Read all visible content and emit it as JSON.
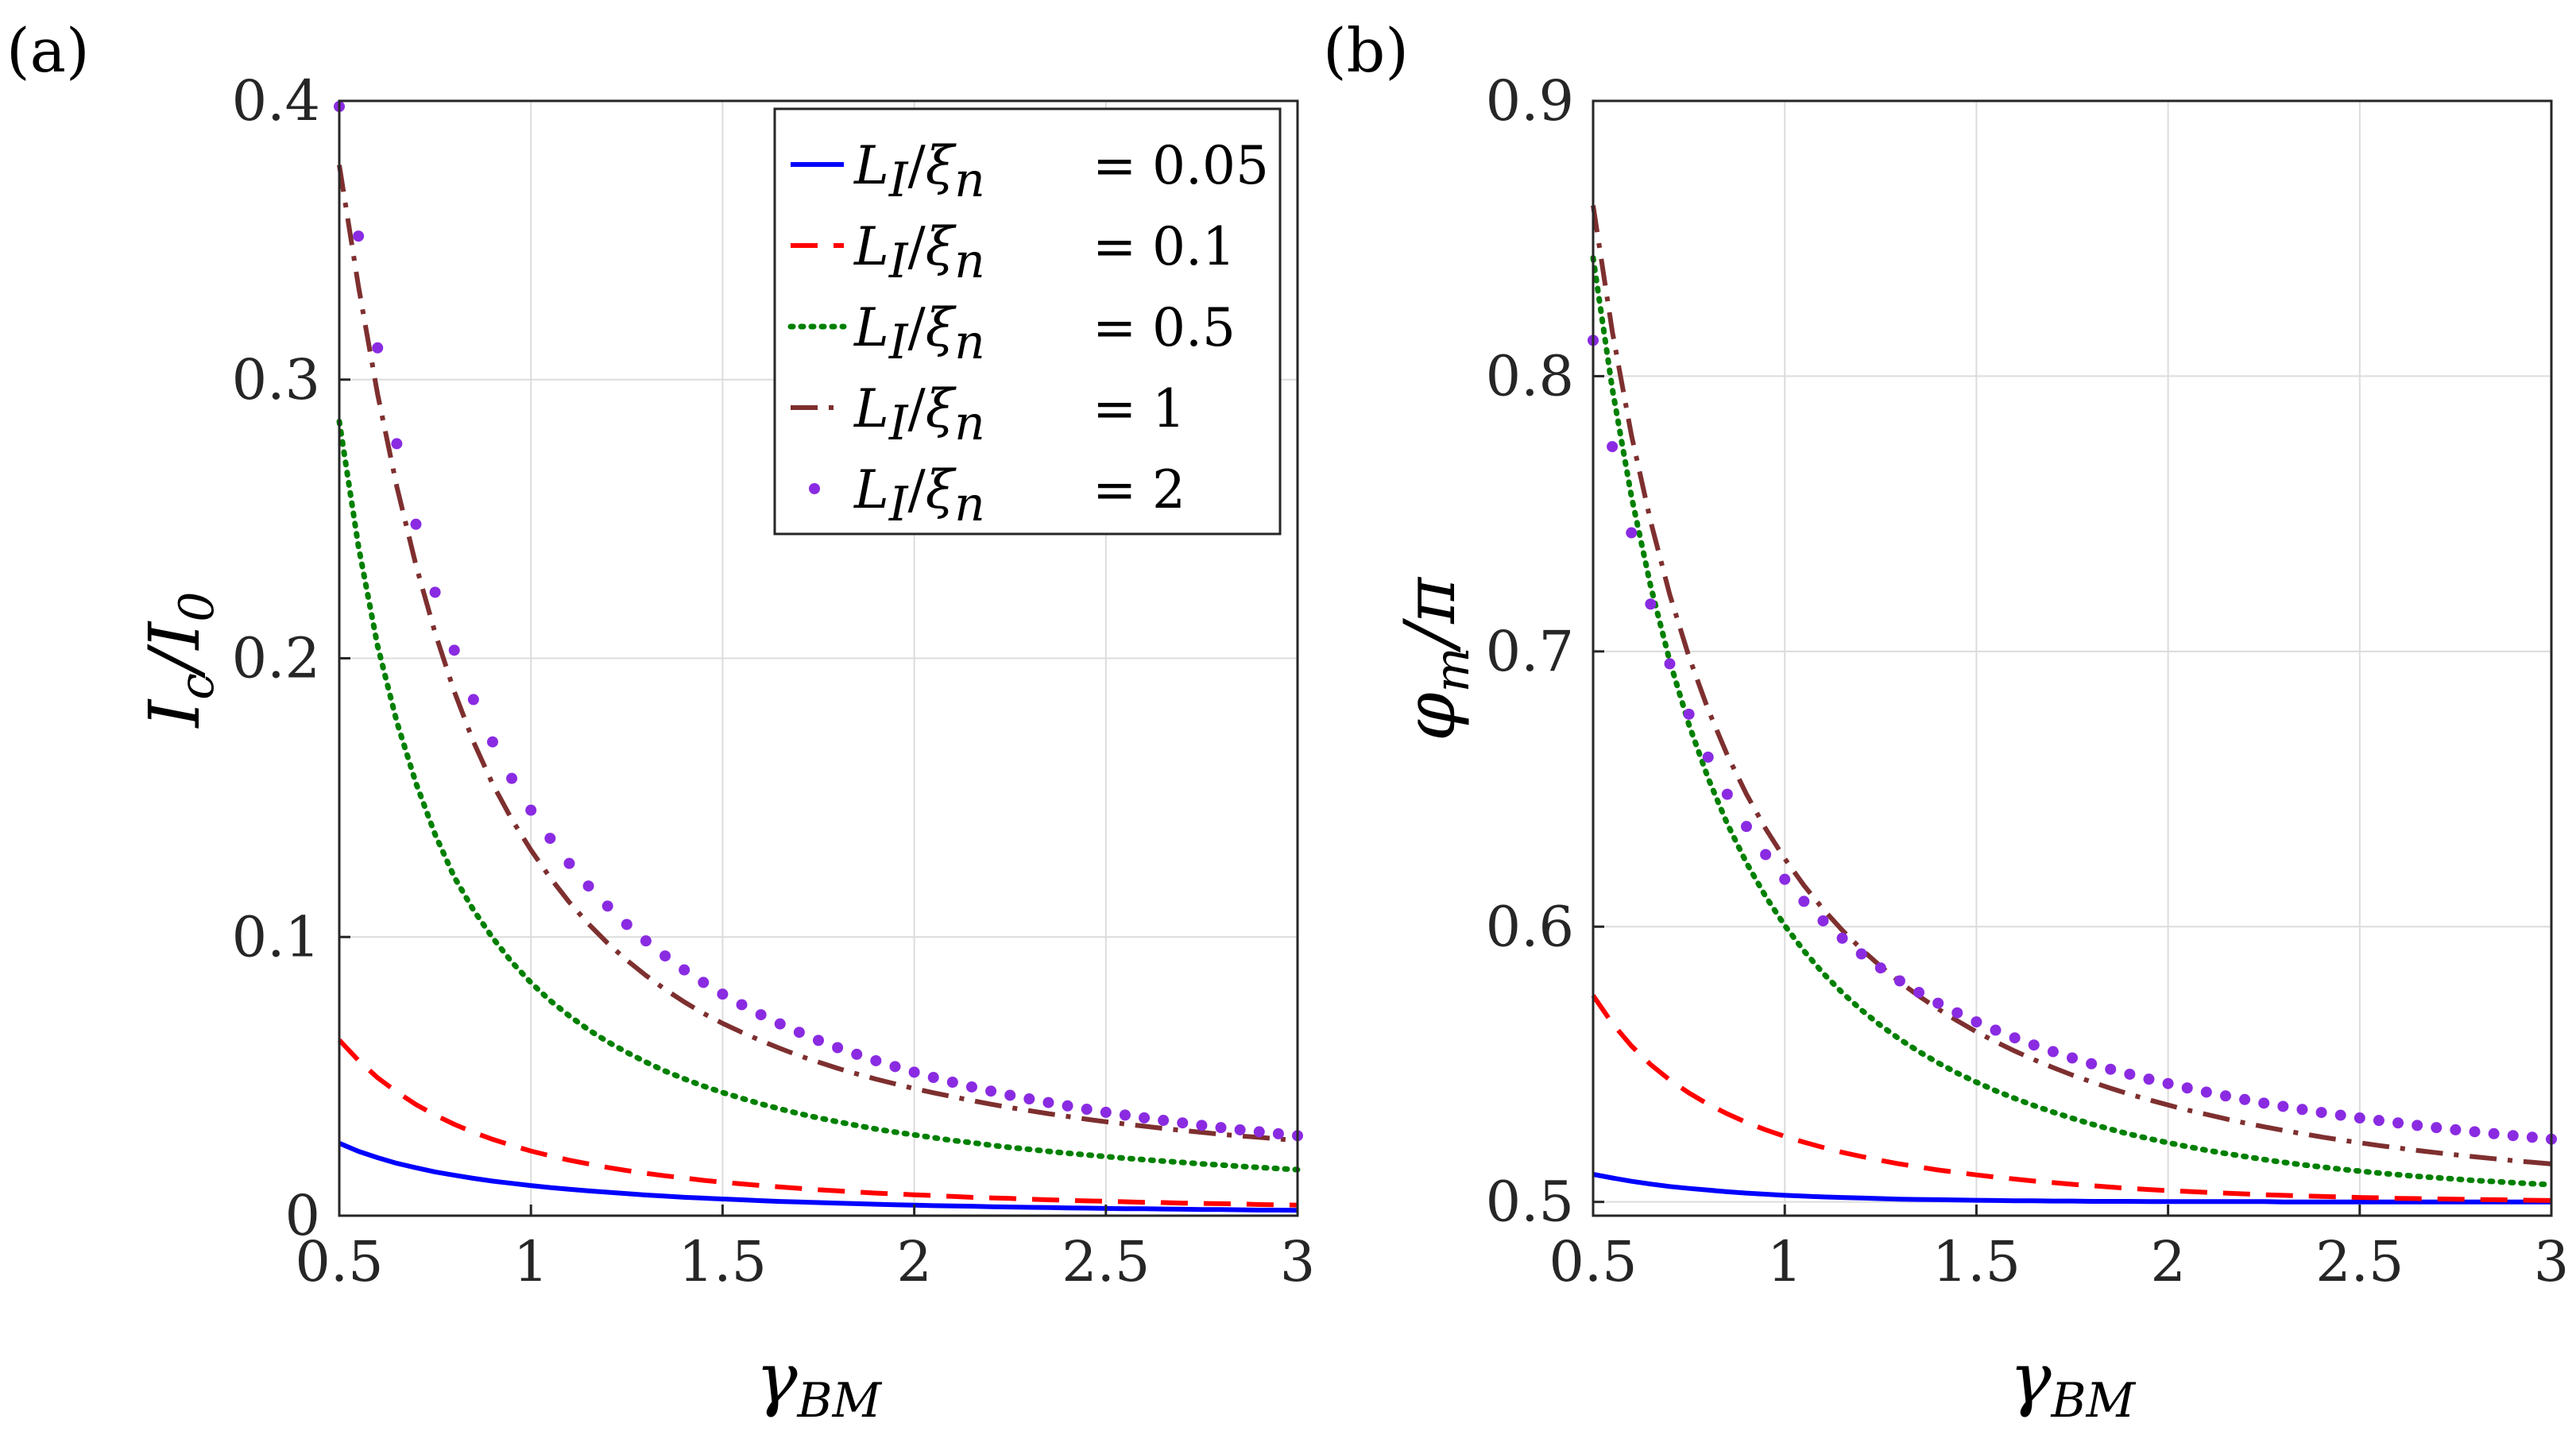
{
  "chart_data": [
    {
      "type": "line",
      "panel_label": "(a)",
      "xlabel": {
        "main": "γ",
        "sub": "BM"
      },
      "ylabel": {
        "main": "I",
        "sub": "c",
        "sep": "/",
        "main2": "I",
        "sub2": "0"
      },
      "xlim": [
        0.5,
        3
      ],
      "ylim": [
        0,
        0.4
      ],
      "xticks": [
        0.5,
        1,
        1.5,
        2,
        2.5,
        3
      ],
      "xtick_labels": [
        "0.5",
        "1",
        "1.5",
        "2",
        "2.5",
        "3"
      ],
      "yticks": [
        0,
        0.1,
        0.2,
        0.3,
        0.4
      ],
      "ytick_labels": [
        "0",
        "0.1",
        "0.2",
        "0.3",
        "0.4"
      ],
      "grid": true,
      "legend_position": "top-right",
      "x": [
        0.5,
        0.55,
        0.6,
        0.65,
        0.7,
        0.75,
        0.8,
        0.85,
        0.9,
        0.95,
        1.0,
        1.05,
        1.1,
        1.15,
        1.2,
        1.25,
        1.3,
        1.35,
        1.4,
        1.45,
        1.5,
        1.55,
        1.6,
        1.65,
        1.7,
        1.75,
        1.8,
        1.85,
        1.9,
        1.95,
        2.0,
        2.05,
        2.1,
        2.15,
        2.2,
        2.25,
        2.3,
        2.35,
        2.4,
        2.45,
        2.5,
        2.55,
        2.6,
        2.65,
        2.7,
        2.75,
        2.8,
        2.85,
        2.9,
        2.95,
        3.0
      ],
      "series": [
        {
          "name": "0.05",
          "values": [
            0.026,
            0.0231,
            0.0208,
            0.0188,
            0.0172,
            0.0157,
            0.0145,
            0.0134,
            0.0124,
            0.0116,
            0.0108,
            0.0101,
            0.0095,
            0.0089,
            0.0084,
            0.0079,
            0.0074,
            0.007,
            0.0066,
            0.0063,
            0.006,
            0.0057,
            0.0054,
            0.0051,
            0.0049,
            0.0047,
            0.0045,
            0.0043,
            0.0041,
            0.0039,
            0.0038,
            0.0036,
            0.0035,
            0.0034,
            0.0032,
            0.0031,
            0.003,
            0.0029,
            0.0028,
            0.0027,
            0.0026,
            0.0025,
            0.0025,
            0.0024,
            0.0023,
            0.0022,
            0.0022,
            0.0021,
            0.002,
            0.002,
            0.0019
          ]
        },
        {
          "name": "0.1",
          "values": [
            0.063,
            0.0557,
            0.0495,
            0.0444,
            0.0399,
            0.0361,
            0.0328,
            0.0299,
            0.0274,
            0.0252,
            0.0232,
            0.0215,
            0.0199,
            0.0186,
            0.0173,
            0.0162,
            0.0152,
            0.0143,
            0.0135,
            0.0127,
            0.012,
            0.0114,
            0.0108,
            0.0103,
            0.0098,
            0.0093,
            0.0089,
            0.0085,
            0.0081,
            0.0078,
            0.0075,
            0.0072,
            0.0069,
            0.0066,
            0.0064,
            0.0062,
            0.0059,
            0.0057,
            0.0055,
            0.0053,
            0.0052,
            0.005,
            0.0048,
            0.0047,
            0.0045,
            0.0044,
            0.0043,
            0.0042,
            0.004,
            0.0039,
            0.0038
          ]
        },
        {
          "name": "0.5",
          "values": [
            0.285,
            0.2402,
            0.2045,
            0.1772,
            0.1552,
            0.1368,
            0.1215,
            0.1097,
            0.0997,
            0.091,
            0.0836,
            0.0772,
            0.0717,
            0.0667,
            0.0624,
            0.0586,
            0.0551,
            0.0519,
            0.0491,
            0.0465,
            0.0442,
            0.0421,
            0.0401,
            0.0383,
            0.0366,
            0.0351,
            0.0337,
            0.0324,
            0.0311,
            0.03,
            0.029,
            0.028,
            0.027,
            0.0262,
            0.0253,
            0.0245,
            0.0238,
            0.0231,
            0.0224,
            0.0218,
            0.0212,
            0.0206,
            0.0201,
            0.0196,
            0.0191,
            0.0186,
            0.0182,
            0.0177,
            0.0173,
            0.0169,
            0.0165
          ]
        },
        {
          "name": "1",
          "values": [
            0.377,
            0.3335,
            0.2948,
            0.2616,
            0.2334,
            0.2091,
            0.1881,
            0.1701,
            0.1549,
            0.1422,
            0.1312,
            0.1213,
            0.1125,
            0.1047,
            0.0978,
            0.0917,
            0.0862,
            0.0812,
            0.0767,
            0.0726,
            0.069,
            0.0658,
            0.0628,
            0.06,
            0.0574,
            0.0551,
            0.0529,
            0.0509,
            0.049,
            0.0473,
            0.0456,
            0.0441,
            0.0427,
            0.0413,
            0.04,
            0.0388,
            0.0377,
            0.0366,
            0.0356,
            0.0346,
            0.0337,
            0.0329,
            0.0321,
            0.0313,
            0.0306,
            0.0299,
            0.0292,
            0.0286,
            0.0281,
            0.0275,
            0.027
          ]
        },
        {
          "name": "2",
          "values": [
            0.398,
            0.3515,
            0.3114,
            0.277,
            0.2481,
            0.2237,
            0.2029,
            0.1852,
            0.17,
            0.1569,
            0.1455,
            0.1354,
            0.1264,
            0.1183,
            0.1111,
            0.1045,
            0.0986,
            0.0932,
            0.0882,
            0.0837,
            0.0795,
            0.0757,
            0.0721,
            0.0688,
            0.0658,
            0.0629,
            0.0603,
            0.0579,
            0.0556,
            0.0535,
            0.0515,
            0.0496,
            0.0479,
            0.0462,
            0.0447,
            0.0432,
            0.0419,
            0.0406,
            0.0394,
            0.0382,
            0.0371,
            0.0361,
            0.0351,
            0.0342,
            0.0333,
            0.0324,
            0.0316,
            0.0308,
            0.0301,
            0.0294,
            0.0287
          ]
        }
      ]
    },
    {
      "type": "line",
      "panel_label": "(b)",
      "xlabel": {
        "main": "γ",
        "sub": "BM"
      },
      "ylabel": {
        "main": "φ",
        "sub": "m",
        "sep": "/",
        "main2": "π"
      },
      "xlim": [
        0.5,
        3
      ],
      "ylim": [
        0.495,
        0.9
      ],
      "xticks": [
        0.5,
        1,
        1.5,
        2,
        2.5,
        3
      ],
      "xtick_labels": [
        "0.5",
        "1",
        "1.5",
        "2",
        "2.5",
        "3"
      ],
      "yticks": [
        0.5,
        0.6,
        0.7,
        0.8,
        0.9
      ],
      "ytick_labels": [
        "0.5",
        "0.6",
        "0.7",
        "0.8",
        "0.9"
      ],
      "grid": true,
      "x": [
        0.5,
        0.55,
        0.6,
        0.65,
        0.7,
        0.75,
        0.8,
        0.85,
        0.9,
        0.95,
        1.0,
        1.05,
        1.1,
        1.15,
        1.2,
        1.25,
        1.3,
        1.35,
        1.4,
        1.45,
        1.5,
        1.55,
        1.6,
        1.65,
        1.7,
        1.75,
        1.8,
        1.85,
        1.9,
        1.95,
        2.0,
        2.05,
        2.1,
        2.15,
        2.2,
        2.25,
        2.3,
        2.35,
        2.4,
        2.45,
        2.5,
        2.55,
        2.6,
        2.65,
        2.7,
        2.75,
        2.8,
        2.85,
        2.9,
        2.95,
        3.0
      ],
      "series": [
        {
          "name": "0.05",
          "values": [
            0.51,
            0.5087,
            0.5075,
            0.5065,
            0.5056,
            0.5049,
            0.5043,
            0.5037,
            0.5032,
            0.5028,
            0.5024,
            0.5021,
            0.5018,
            0.5016,
            0.5014,
            0.5012,
            0.501,
            0.5009,
            0.5008,
            0.5007,
            0.5006,
            0.5005,
            0.5004,
            0.5004,
            0.5003,
            0.5003,
            0.5002,
            0.5002,
            0.5002,
            0.5001,
            0.5001,
            0.5001,
            0.5001,
            0.5001,
            0.5001,
            0.5001,
            0.5,
            0.5,
            0.5,
            0.5,
            0.5,
            0.5,
            0.5,
            0.5,
            0.5,
            0.5,
            0.5,
            0.5,
            0.5,
            0.5,
            0.5
          ]
        },
        {
          "name": "0.1",
          "values": [
            0.575,
            0.5649,
            0.5567,
            0.5499,
            0.5443,
            0.5396,
            0.5355,
            0.532,
            0.5289,
            0.5262,
            0.5238,
            0.5217,
            0.5198,
            0.518,
            0.5165,
            0.5151,
            0.5138,
            0.5127,
            0.5116,
            0.5107,
            0.5098,
            0.509,
            0.5083,
            0.5076,
            0.507,
            0.5064,
            0.5059,
            0.5054,
            0.5049,
            0.5045,
            0.5041,
            0.5038,
            0.5035,
            0.5032,
            0.5029,
            0.5026,
            0.5024,
            0.5022,
            0.502,
            0.5018,
            0.5016,
            0.5015,
            0.5013,
            0.5012,
            0.5011,
            0.501,
            0.5009,
            0.5008,
            0.5007,
            0.5006,
            0.5005
          ]
        },
        {
          "name": "0.5",
          "values": [
            0.843,
            0.7955,
            0.7563,
            0.7237,
            0.6964,
            0.6734,
            0.654,
            0.6374,
            0.6232,
            0.611,
            0.6004,
            0.5912,
            0.5831,
            0.576,
            0.5697,
            0.5641,
            0.5591,
            0.5546,
            0.5505,
            0.5468,
            0.5435,
            0.5404,
            0.5376,
            0.535,
            0.5326,
            0.5304,
            0.5283,
            0.5264,
            0.5246,
            0.523,
            0.5215,
            0.5201,
            0.5188,
            0.5176,
            0.5165,
            0.5154,
            0.5144,
            0.5135,
            0.5127,
            0.5119,
            0.5112,
            0.5105,
            0.5099,
            0.5093,
            0.5088,
            0.5083,
            0.5078,
            0.5074,
            0.507,
            0.5066,
            0.5063
          ]
        },
        {
          "name": "1",
          "values": [
            0.862,
            0.8163,
            0.7786,
            0.7472,
            0.7206,
            0.6981,
            0.6789,
            0.6624,
            0.6481,
            0.6356,
            0.6247,
            0.615,
            0.6064,
            0.5987,
            0.5918,
            0.5856,
            0.5799,
            0.5748,
            0.5701,
            0.5658,
            0.5618,
            0.5582,
            0.5548,
            0.5517,
            0.5488,
            0.5461,
            0.5436,
            0.5413,
            0.5391,
            0.5371,
            0.5352,
            0.5334,
            0.5318,
            0.5302,
            0.5287,
            0.5273,
            0.526,
            0.5248,
            0.5236,
            0.5225,
            0.5215,
            0.5205,
            0.5196,
            0.5187,
            0.5179,
            0.5171,
            0.5164,
            0.5157,
            0.515,
            0.5144,
            0.5138
          ]
        },
        {
          "name": "2",
          "values": [
            0.813,
            0.7744,
            0.7431,
            0.7172,
            0.6955,
            0.6772,
            0.6616,
            0.6481,
            0.6364,
            0.6262,
            0.6172,
            0.6092,
            0.6021,
            0.5958,
            0.5901,
            0.585,
            0.5803,
            0.5761,
            0.5722,
            0.5687,
            0.5654,
            0.5624,
            0.5596,
            0.557,
            0.5546,
            0.5523,
            0.5502,
            0.5482,
            0.5464,
            0.5446,
            0.543,
            0.5414,
            0.5399,
            0.5385,
            0.5372,
            0.5359,
            0.5347,
            0.5336,
            0.5325,
            0.5315,
            0.5305,
            0.5296,
            0.5287,
            0.5278,
            0.527,
            0.5262,
            0.5255,
            0.5248,
            0.5241,
            0.5235,
            0.5228
          ]
        }
      ]
    }
  ],
  "legend": {
    "prefix_main": "L",
    "prefix_sub": "I",
    "prefix_sep": "/",
    "prefix_main2": "ξ",
    "prefix_sub2": "n",
    "eq": "=",
    "entries": [
      {
        "series": "0.05",
        "value": "0.05",
        "color": "#0000ff",
        "style": "solid"
      },
      {
        "series": "0.1",
        "value": "0.1",
        "color": "#ff0000",
        "style": "dashed"
      },
      {
        "series": "0.5",
        "value": "0.5",
        "color": "#008000",
        "style": "dotted"
      },
      {
        "series": "1",
        "value": "1",
        "color": "#7e2f2f",
        "style": "dashdot"
      },
      {
        "series": "2",
        "value": "2",
        "color": "#8a2be2",
        "style": "markers"
      }
    ]
  }
}
